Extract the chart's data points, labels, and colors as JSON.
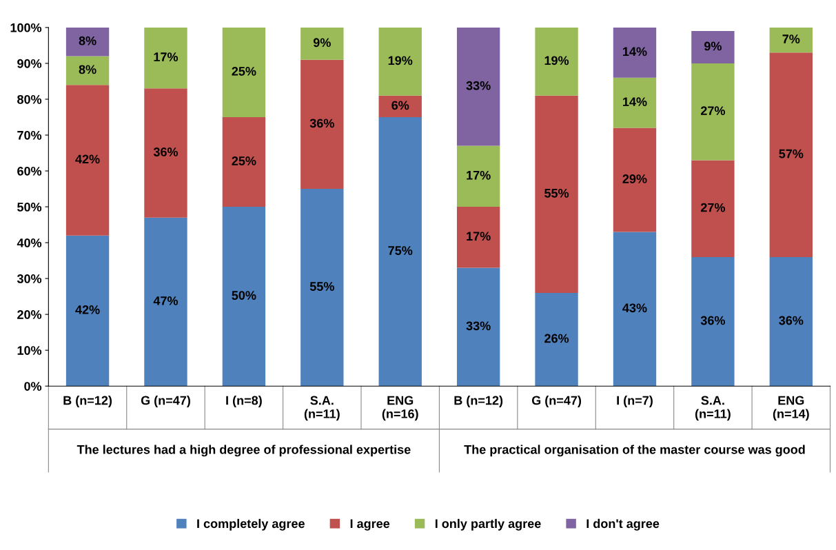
{
  "chart_data": {
    "type": "bar",
    "stacked": true,
    "legend": "bottom",
    "grid": false,
    "categories": [
      "B (n=12)",
      "G (n=47)",
      "I (n=8)",
      "S.A.\n(n=11)",
      "ENG\n(n=16)",
      "B (n=12)",
      "G (n=47)",
      "I (n=7)",
      "S.A.\n(n=11)",
      "ENG\n(n=14)"
    ],
    "annotations": [
      "The lectures had a high degree of professional expertise",
      "The practical organisation of the master course was good"
    ],
    "ylim": [
      0,
      100
    ],
    "yticks": [
      {
        "value": 0,
        "label": "0%"
      },
      {
        "value": 10,
        "label": "10%"
      },
      {
        "value": 20,
        "label": "20%"
      },
      {
        "value": 30,
        "label": "30%"
      },
      {
        "value": 40,
        "label": "40%"
      },
      {
        "value": 50,
        "label": "50%"
      },
      {
        "value": 60,
        "label": "60%"
      },
      {
        "value": 70,
        "label": "70%"
      },
      {
        "value": 80,
        "label": "80%"
      },
      {
        "value": 90,
        "label": "90%"
      },
      {
        "value": 100,
        "label": "100%"
      }
    ],
    "series": [
      {
        "name": "I completely agree",
        "color": "#4f81bd",
        "values": [
          42,
          47,
          50,
          55,
          75,
          33,
          26,
          43,
          36,
          36
        ],
        "value_labels": [
          "42%",
          "47%",
          "50%",
          "55%",
          "75%",
          "33%",
          "26%",
          "43%",
          "36%",
          "36%"
        ]
      },
      {
        "name": "I agree",
        "color": "#c0504d",
        "values": [
          42,
          36,
          25,
          36,
          6,
          17,
          55,
          29,
          27,
          57
        ],
        "value_labels": [
          "42%",
          "36%",
          "25%",
          "36%",
          "6%",
          "17%",
          "55%",
          "29%",
          "27%",
          "57%"
        ]
      },
      {
        "name": "I only partly agree",
        "color": "#9bbb59",
        "values": [
          8,
          17,
          25,
          9,
          19,
          17,
          19,
          14,
          27,
          7
        ],
        "value_labels": [
          "8%",
          "17%",
          "25%",
          "9%",
          "19%",
          "17%",
          "19%",
          "14%",
          "27%",
          "7%"
        ]
      },
      {
        "name": "I don't agree",
        "color": "#8064a2",
        "values": [
          8,
          null,
          null,
          null,
          null,
          33,
          null,
          14,
          9,
          null
        ],
        "value_labels": [
          "8%",
          null,
          null,
          null,
          null,
          "33%",
          null,
          "14%",
          "9%",
          null
        ]
      }
    ]
  }
}
